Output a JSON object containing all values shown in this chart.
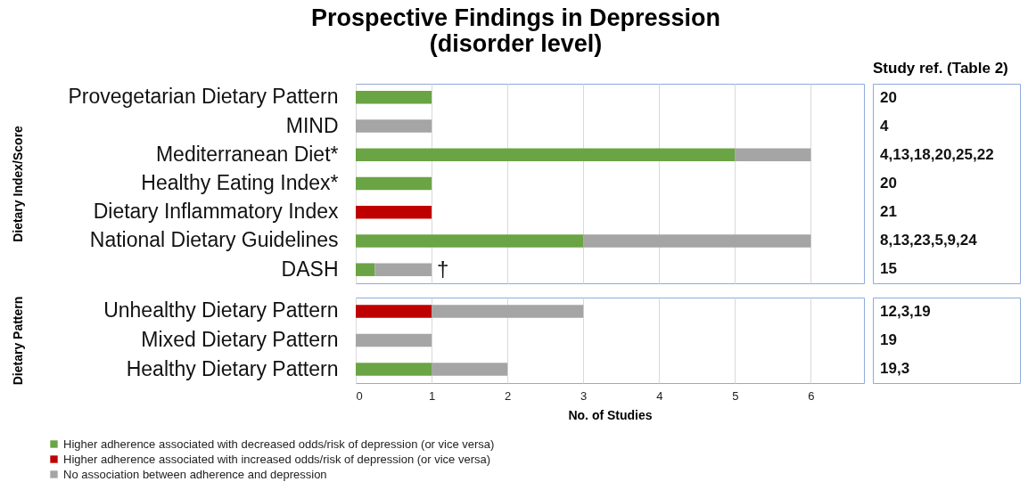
{
  "chart_data": [
    {
      "type": "bar",
      "orientation": "horizontal",
      "stacked": true,
      "title": "Prospective Findings in Depression",
      "subtitle": "(disorder level)",
      "ylabel": "Dietary Index/Score",
      "categories": [
        "Provegetarian Dietary Pattern",
        "MIND",
        "Mediterranean Diet*",
        "Healthy Eating Index*",
        "Dietary Inflammatory Index",
        "National Dietary Guidelines",
        "DASH"
      ],
      "series": [
        {
          "color": "#6aa444",
          "values": [
            1,
            null,
            5,
            1,
            null,
            3,
            0.25
          ]
        },
        {
          "color": "#bf0000",
          "values": [
            null,
            null,
            null,
            null,
            1,
            null,
            null
          ]
        },
        {
          "color": "#a5a5a5",
          "values": [
            null,
            1,
            1,
            null,
            null,
            3,
            0.75
          ]
        }
      ],
      "xlim": [
        0,
        6.7
      ],
      "xticks": [
        0,
        1,
        2,
        3,
        4,
        5,
        6
      ],
      "grid": "x",
      "tick_labels": "y",
      "annotations": [
        "Study ref. (Table 2)",
        "20",
        "4",
        "4,13,18,20,25,22",
        "20",
        "21",
        "8,13,23,5,9,24",
        "15",
        {
          "text": "†",
          "x": 1,
          "y": "DASH"
        }
      ]
    },
    {
      "type": "bar",
      "orientation": "horizontal",
      "stacked": true,
      "ylabel": "Dietary Pattern",
      "xlabel": "No. of Studies",
      "categories": [
        "Unhealthy Dietary Pattern",
        "Mixed Dietary Pattern",
        "Healthy Dietary Pattern"
      ],
      "series": [
        {
          "name": "Higher adherence associated with decreased odds/risk of depression (or vice versa)",
          "color": "#6aa444",
          "values": [
            null,
            null,
            1
          ]
        },
        {
          "name": "Higher adherence associated with increased odds/risk of depression (or vice versa)",
          "color": "#bf0000",
          "values": [
            1,
            null,
            null
          ]
        },
        {
          "name": "No association between adherence and depression",
          "color": "#a5a5a5",
          "values": [
            2,
            1,
            1
          ]
        }
      ],
      "xlim": [
        0,
        6.7
      ],
      "xticks": [
        0,
        1,
        2,
        3,
        4,
        5,
        6
      ],
      "grid": "x",
      "legend": "bottom left",
      "annotations": [
        "12,3,19",
        "19",
        "19,3"
      ]
    }
  ]
}
